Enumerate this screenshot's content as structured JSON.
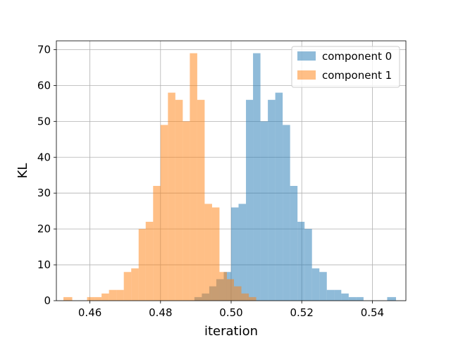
{
  "chart_data": {
    "type": "histogram",
    "xlabel": "iteration",
    "ylabel": "KL",
    "xlim": [
      0.4505,
      0.5495
    ],
    "ylim": [
      0,
      72.45
    ],
    "x_ticks": [
      0.46,
      0.48,
      0.5,
      0.52,
      0.54
    ],
    "x_tick_labels": [
      "0.46",
      "0.48",
      "0.50",
      "0.52",
      "0.54"
    ],
    "y_ticks": [
      0,
      10,
      20,
      30,
      40,
      50,
      60,
      70
    ],
    "y_tick_labels": [
      "0",
      "10",
      "20",
      "30",
      "40",
      "50",
      "60",
      "70"
    ],
    "grid": true,
    "legend_position": "top-right",
    "bar_alpha": 0.5,
    "series": [
      {
        "name": "component 0",
        "color": "#1f77b4",
        "bins": [
          {
            "x0": 0.4896,
            "x1": 0.4917,
            "count": 1
          },
          {
            "x0": 0.4917,
            "x1": 0.4938,
            "count": 2
          },
          {
            "x0": 0.4938,
            "x1": 0.4958,
            "count": 4
          },
          {
            "x0": 0.4958,
            "x1": 0.4979,
            "count": 6
          },
          {
            "x0": 0.4979,
            "x1": 0.5,
            "count": 8
          },
          {
            "x0": 0.5,
            "x1": 0.5021,
            "count": 26
          },
          {
            "x0": 0.5021,
            "x1": 0.5042,
            "count": 27
          },
          {
            "x0": 0.5042,
            "x1": 0.5062,
            "count": 56
          },
          {
            "x0": 0.5062,
            "x1": 0.5083,
            "count": 69
          },
          {
            "x0": 0.5083,
            "x1": 0.5104,
            "count": 50
          },
          {
            "x0": 0.5104,
            "x1": 0.5125,
            "count": 56
          },
          {
            "x0": 0.5125,
            "x1": 0.5146,
            "count": 58
          },
          {
            "x0": 0.5146,
            "x1": 0.5167,
            "count": 49
          },
          {
            "x0": 0.5167,
            "x1": 0.5188,
            "count": 32
          },
          {
            "x0": 0.5188,
            "x1": 0.5208,
            "count": 22
          },
          {
            "x0": 0.5208,
            "x1": 0.5229,
            "count": 20
          },
          {
            "x0": 0.5229,
            "x1": 0.525,
            "count": 9
          },
          {
            "x0": 0.525,
            "x1": 0.5271,
            "count": 8
          },
          {
            "x0": 0.5271,
            "x1": 0.5292,
            "count": 3
          },
          {
            "x0": 0.5292,
            "x1": 0.5312,
            "count": 3
          },
          {
            "x0": 0.5312,
            "x1": 0.5333,
            "count": 2
          },
          {
            "x0": 0.5333,
            "x1": 0.5354,
            "count": 1
          },
          {
            "x0": 0.5354,
            "x1": 0.5375,
            "count": 1
          },
          {
            "x0": 0.5442,
            "x1": 0.5467,
            "count": 1
          }
        ]
      },
      {
        "name": "component 1",
        "color": "#ff7f0e",
        "bins": [
          {
            "x0": 0.4525,
            "x1": 0.455,
            "count": 1
          },
          {
            "x0": 0.4592,
            "x1": 0.4613,
            "count": 1
          },
          {
            "x0": 0.4613,
            "x1": 0.4633,
            "count": 1
          },
          {
            "x0": 0.4633,
            "x1": 0.4654,
            "count": 2
          },
          {
            "x0": 0.4654,
            "x1": 0.4675,
            "count": 3
          },
          {
            "x0": 0.4675,
            "x1": 0.4696,
            "count": 3
          },
          {
            "x0": 0.4696,
            "x1": 0.4717,
            "count": 8
          },
          {
            "x0": 0.4717,
            "x1": 0.4738,
            "count": 9
          },
          {
            "x0": 0.4738,
            "x1": 0.4758,
            "count": 20
          },
          {
            "x0": 0.4758,
            "x1": 0.4779,
            "count": 22
          },
          {
            "x0": 0.4779,
            "x1": 0.48,
            "count": 32
          },
          {
            "x0": 0.48,
            "x1": 0.4821,
            "count": 49
          },
          {
            "x0": 0.4821,
            "x1": 0.4842,
            "count": 58
          },
          {
            "x0": 0.4842,
            "x1": 0.4863,
            "count": 56
          },
          {
            "x0": 0.4863,
            "x1": 0.4883,
            "count": 50
          },
          {
            "x0": 0.4883,
            "x1": 0.4904,
            "count": 69
          },
          {
            "x0": 0.4904,
            "x1": 0.4925,
            "count": 56
          },
          {
            "x0": 0.4925,
            "x1": 0.4946,
            "count": 27
          },
          {
            "x0": 0.4946,
            "x1": 0.4967,
            "count": 26
          },
          {
            "x0": 0.4967,
            "x1": 0.4988,
            "count": 8
          },
          {
            "x0": 0.4988,
            "x1": 0.5008,
            "count": 6
          },
          {
            "x0": 0.5008,
            "x1": 0.5029,
            "count": 4
          },
          {
            "x0": 0.5029,
            "x1": 0.505,
            "count": 2
          },
          {
            "x0": 0.505,
            "x1": 0.5071,
            "count": 1
          }
        ]
      }
    ]
  }
}
